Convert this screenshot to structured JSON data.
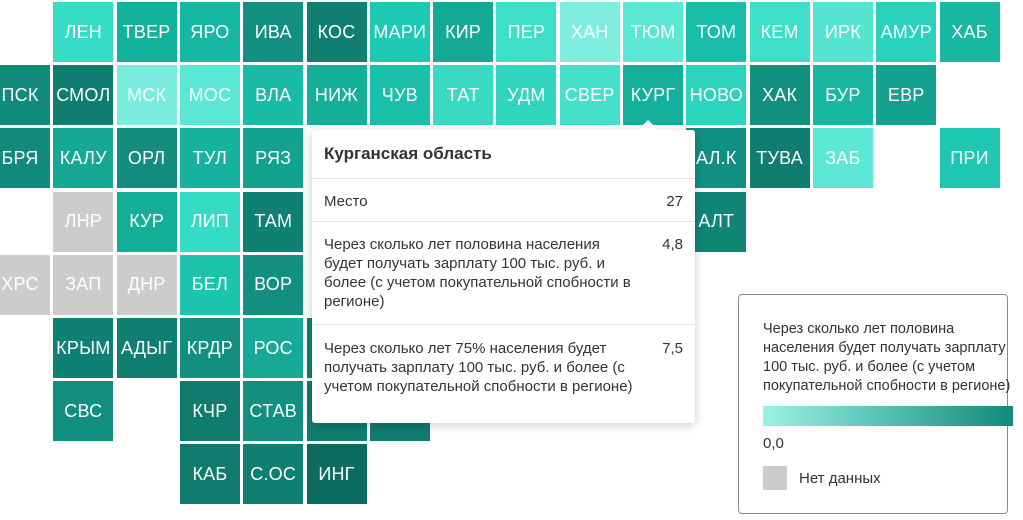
{
  "map": {
    "tiles": [
      {
        "label": "ЛЕН",
        "col": 1,
        "row": 0,
        "color": "#36dcc6"
      },
      {
        "label": "ТВЕР",
        "col": 2,
        "row": 0,
        "color": "#14b19c"
      },
      {
        "label": "ЯРО",
        "col": 3,
        "row": 0,
        "color": "#17b8a3"
      },
      {
        "label": "ИВА",
        "col": 4,
        "row": 0,
        "color": "#128f80"
      },
      {
        "label": "КОС",
        "col": 5,
        "row": 0,
        "color": "#107f71"
      },
      {
        "label": "МАРИ",
        "col": 6,
        "row": 0,
        "color": "#1ec9b3"
      },
      {
        "label": "КИР",
        "col": 7,
        "row": 0,
        "color": "#14aa96"
      },
      {
        "label": "ПЕР",
        "col": 8,
        "row": 0,
        "color": "#3ddfc9"
      },
      {
        "label": "ХАН",
        "col": 9,
        "row": 0,
        "color": "#7feedf"
      },
      {
        "label": "ТЮМ",
        "col": 10,
        "row": 0,
        "color": "#5ae7d4"
      },
      {
        "label": "ТОМ",
        "col": 11,
        "row": 0,
        "color": "#19bea8"
      },
      {
        "label": "КЕМ",
        "col": 12,
        "row": 0,
        "color": "#3ddfc9"
      },
      {
        "label": "ИРК",
        "col": 13,
        "row": 0,
        "color": "#55e4d1"
      },
      {
        "label": "АМУР",
        "col": 14,
        "row": 0,
        "color": "#2ad2bc"
      },
      {
        "label": "ХАБ",
        "col": 15,
        "row": 0,
        "color": "#17b7a2"
      },
      {
        "label": "ПСК",
        "col": 0,
        "row": 1,
        "color": "#118a7b"
      },
      {
        "label": "СМОЛ",
        "col": 1,
        "row": 1,
        "color": "#0f7e70"
      },
      {
        "label": "МСК",
        "col": 2,
        "row": 1,
        "color": "#79ecdd"
      },
      {
        "label": "МОС",
        "col": 3,
        "row": 1,
        "color": "#5ae7d4"
      },
      {
        "label": "ВЛА",
        "col": 4,
        "row": 1,
        "color": "#18bca6"
      },
      {
        "label": "НИЖ",
        "col": 5,
        "row": 1,
        "color": "#14ae99"
      },
      {
        "label": "ЧУВ",
        "col": 6,
        "row": 1,
        "color": "#1ac0aa"
      },
      {
        "label": "ТАТ",
        "col": 7,
        "row": 1,
        "color": "#3ad9c4"
      },
      {
        "label": "УДМ",
        "col": 8,
        "row": 1,
        "color": "#2fd5bf"
      },
      {
        "label": "СВЕР",
        "col": 9,
        "row": 1,
        "color": "#46e1cc"
      },
      {
        "label": "КУРГ",
        "col": 10,
        "row": 1,
        "color": "#14b09b"
      },
      {
        "label": "НОВО",
        "col": 11,
        "row": 1,
        "color": "#2cd3bd"
      },
      {
        "label": "ХАК",
        "col": 12,
        "row": 1,
        "color": "#138f80"
      },
      {
        "label": "БУР",
        "col": 13,
        "row": 1,
        "color": "#17b7a2"
      },
      {
        "label": "ЕВР",
        "col": 14,
        "row": 1,
        "color": "#15a190"
      },
      {
        "label": "БРЯ",
        "col": 0,
        "row": 2,
        "color": "#128a7b"
      },
      {
        "label": "КАЛУ",
        "col": 1,
        "row": 2,
        "color": "#17a795"
      },
      {
        "label": "ОРЛ",
        "col": 2,
        "row": 2,
        "color": "#138d7e"
      },
      {
        "label": "ТУЛ",
        "col": 3,
        "row": 2,
        "color": "#16b29d"
      },
      {
        "label": "РЯЗ",
        "col": 4,
        "row": 2,
        "color": "#13a290"
      },
      {
        "label": "АЛ.К",
        "col": 11,
        "row": 2,
        "color": "#109083"
      },
      {
        "label": "ТУВА",
        "col": 12,
        "row": 2,
        "color": "#0f7d70"
      },
      {
        "label": "ЗАБ",
        "col": 13,
        "row": 2,
        "color": "#5ee7d5"
      },
      {
        "label": "ПРИ",
        "col": 15,
        "row": 2,
        "color": "#1ec7b1"
      },
      {
        "label": "ЛНР",
        "col": 1,
        "row": 3,
        "color": "#cccccc"
      },
      {
        "label": "КУР",
        "col": 2,
        "row": 3,
        "color": "#14ae99"
      },
      {
        "label": "ЛИП",
        "col": 3,
        "row": 3,
        "color": "#34dbc5"
      },
      {
        "label": "ТАМ",
        "col": 4,
        "row": 3,
        "color": "#0f8072"
      },
      {
        "label": "АЛТ",
        "col": 11,
        "row": 3,
        "color": "#0f8576"
      },
      {
        "label": "ХРС",
        "col": 0,
        "row": 4,
        "color": "#cccccc"
      },
      {
        "label": "ЗАП",
        "col": 1,
        "row": 4,
        "color": "#cccccc"
      },
      {
        "label": "ДНР",
        "col": 2,
        "row": 4,
        "color": "#cccccc"
      },
      {
        "label": "БЕЛ",
        "col": 3,
        "row": 4,
        "color": "#1cc4ae"
      },
      {
        "label": "ВОР",
        "col": 4,
        "row": 4,
        "color": "#128f80"
      },
      {
        "label": "КРЫМ",
        "col": 1,
        "row": 5,
        "color": "#0f8174"
      },
      {
        "label": "АДЫГ",
        "col": 2,
        "row": 5,
        "color": "#0f7f71"
      },
      {
        "label": "КРДР",
        "col": 3,
        "row": 5,
        "color": "#138f80"
      },
      {
        "label": "РОС",
        "col": 4,
        "row": 5,
        "color": "#16a996"
      },
      {
        "label": "",
        "col": 5,
        "row": 5,
        "color": "#0f7f71"
      },
      {
        "label": "СВС",
        "col": 1,
        "row": 6,
        "color": "#138f80"
      },
      {
        "label": "КЧР",
        "col": 3,
        "row": 6,
        "color": "#0f7c6f"
      },
      {
        "label": "СТАВ",
        "col": 4,
        "row": 6,
        "color": "#138f80"
      },
      {
        "label": "",
        "col": 5,
        "row": 6,
        "color": "#0f7c6f"
      },
      {
        "label": "",
        "col": 6,
        "row": 6,
        "color": "#0f7c6f"
      },
      {
        "label": "КАБ",
        "col": 3,
        "row": 7,
        "color": "#0f7a6d"
      },
      {
        "label": "С.ОС",
        "col": 4,
        "row": 7,
        "color": "#0f7f71"
      },
      {
        "label": "ИНГ",
        "col": 5,
        "row": 7,
        "color": "#0d6c60"
      }
    ]
  },
  "tooltip": {
    "title": "Курганская область",
    "rows": [
      {
        "label": "Место",
        "value": "27"
      },
      {
        "label": "Через сколько лет половина населения будет получать зарплату 100 тыс. руб. и более (с учетом покупательной спобности в регионе)",
        "value": "4,8"
      },
      {
        "label": "Через сколько лет 75% населения будет получать зарплату 100 тыс. руб. и более (с учетом покупательной спобности в регионе)",
        "value": "7,5"
      }
    ]
  },
  "legend": {
    "title": "Через сколько лет половина населения будет получать зарплату 100 тыс. руб. и более (с учетом покупательной спобности в регионе)",
    "min_label": "0,0",
    "nodata_label": "Нет данных",
    "gradient_start": "#9af2e6",
    "gradient_end": "#138a7b",
    "nodata_color": "#cccccc"
  }
}
